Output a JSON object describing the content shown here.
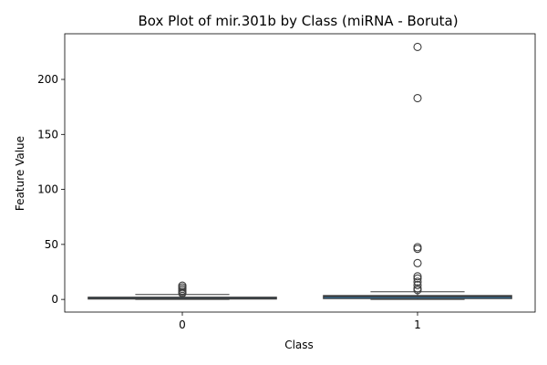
{
  "chart_data": {
    "type": "box",
    "title": "Box Plot of mir.301b by Class (miRNA - Boruta)",
    "xlabel": "Class",
    "ylabel": "Feature Value",
    "categories": [
      "0",
      "1"
    ],
    "ylim": [
      -11.5,
      241.5
    ],
    "yticks": [
      0,
      50,
      100,
      150,
      200
    ],
    "grid": false,
    "legend": "none",
    "colors": {
      "box_fill": "#2d7fb8",
      "line": "#3d3d3d",
      "outlier": "#3d3d3d"
    },
    "boxes": [
      {
        "category": "0",
        "whisker_low": 0.0,
        "q1": 0.4,
        "median": 1.0,
        "q3": 2.0,
        "whisker_high": 4.5,
        "outliers": [
          5.5,
          6.5,
          8.0,
          9.5,
          11.0,
          12.5
        ]
      },
      {
        "category": "1",
        "whisker_low": 0.0,
        "q1": 0.8,
        "median": 2.5,
        "q3": 3.5,
        "whisker_high": 7.0,
        "outliers": [
          8.5,
          10.0,
          13.0,
          16.0,
          19.0,
          21.0,
          33.0,
          46.0,
          47.5,
          183.0,
          229.5
        ]
      }
    ]
  }
}
